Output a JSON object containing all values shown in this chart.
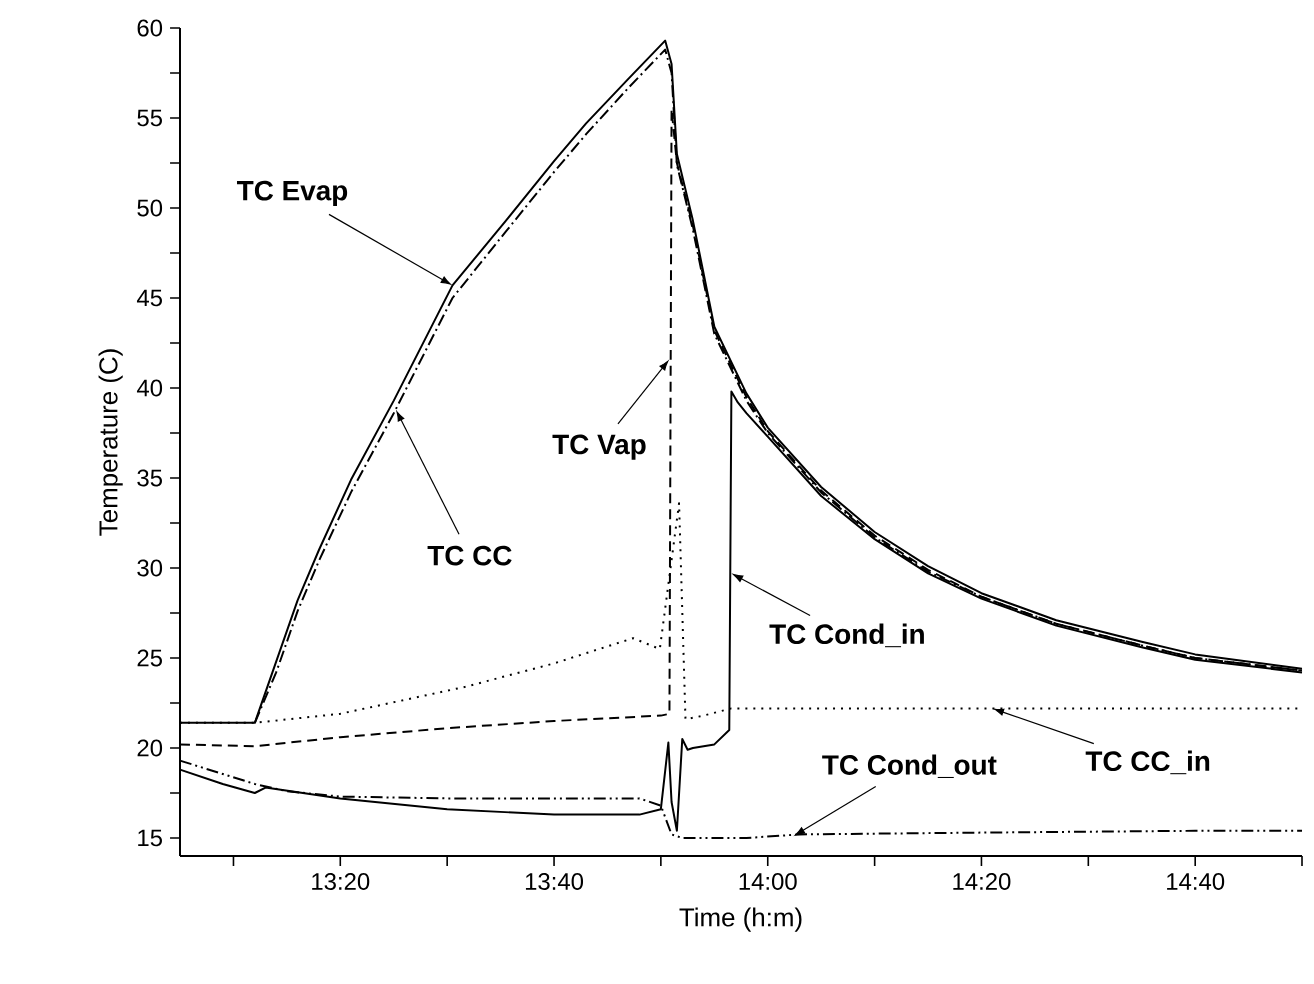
{
  "chart_data": {
    "type": "line",
    "xlabel": "Time (h:m)",
    "ylabel": "Temperature (C)",
    "xlim": [
      13.0833,
      14.8333
    ],
    "xticks": [
      {
        "value": 13.1667,
        "label": null
      },
      {
        "value": 13.3333,
        "label": "13:20"
      },
      {
        "value": 13.5,
        "label": null
      },
      {
        "value": 13.6667,
        "label": "13:40"
      },
      {
        "value": 13.8333,
        "label": null
      },
      {
        "value": 14.0,
        "label": "14:00"
      },
      {
        "value": 14.1667,
        "label": null
      },
      {
        "value": 14.3333,
        "label": "14:20"
      },
      {
        "value": 14.5,
        "label": null
      },
      {
        "value": 14.6667,
        "label": "14:40"
      },
      {
        "value": 14.8333,
        "label": null
      }
    ],
    "ylim": [
      14,
      60
    ],
    "yticks": [
      15,
      {
        "value": 17.5,
        "label": null
      },
      20,
      {
        "value": 22.5,
        "label": null
      },
      25,
      {
        "value": 27.5,
        "label": null
      },
      30,
      {
        "value": 32.5,
        "label": null
      },
      35,
      {
        "value": 37.5,
        "label": null
      },
      40,
      {
        "value": 42.5,
        "label": null
      },
      45,
      {
        "value": 47.5,
        "label": null
      },
      50,
      {
        "value": 52.5,
        "label": null
      },
      55,
      {
        "value": 57.5,
        "label": null
      },
      60
    ],
    "grid": false,
    "marker": "none",
    "series": [
      {
        "color": "#000000",
        "line_style": "solid",
        "x": [
          13.0833,
          13.2,
          13.2333,
          13.2667,
          13.3,
          13.35,
          13.4167,
          13.5083,
          13.5917,
          13.6667,
          13.7167,
          13.7833,
          13.84,
          13.85,
          13.8583,
          13.8833,
          13.9167,
          13.9667,
          14.0,
          14.0833,
          14.1667,
          14.25,
          14.3333,
          14.45,
          14.5833,
          14.6667,
          14.8333
        ],
        "values": [
          21.4,
          21.4,
          24.8,
          28.2,
          31.0,
          34.9,
          39.3,
          45.7,
          49.3,
          52.6,
          54.7,
          57.2,
          59.3,
          58.0,
          53,
          49.3,
          43.4,
          39.7,
          37.8,
          34.5,
          32.0,
          30.1,
          28.6,
          27.1,
          25.9,
          25.2,
          24.4
        ]
      },
      {
        "color": "#000000",
        "line_style": "dashdot",
        "x": [
          13.2,
          13.2333,
          13.2667,
          13.3,
          13.35,
          13.4167,
          13.5083,
          13.5917,
          13.6667,
          13.7167,
          13.7833,
          13.84,
          13.85,
          13.8583,
          13.8833,
          13.9167,
          13.9667,
          14.0,
          14.0833,
          14.1667,
          14.25,
          14.3333,
          14.45,
          14.5833,
          14.6667,
          14.8333
        ],
        "values": [
          21.4,
          24.2,
          27.6,
          30.4,
          34.2,
          38.6,
          45.0,
          48.7,
          52.0,
          54.1,
          56.7,
          58.8,
          57.5,
          52.4,
          48.8,
          43.0,
          39.3,
          37.5,
          34.2,
          31.7,
          29.8,
          28.4,
          26.9,
          25.7,
          25.0,
          24.3
        ]
      },
      {
        "color": "#000000",
        "line_style": "dashed",
        "x": [
          13.0833,
          13.2,
          13.3333,
          13.5,
          13.6667,
          13.8333,
          13.8467,
          13.85,
          13.8583,
          13.8833,
          13.9167,
          13.9667,
          14.0,
          14.0833,
          14.1667,
          14.25,
          14.3333,
          14.45,
          14.5833,
          14.6667,
          14.8333
        ],
        "values": [
          20.2,
          20.1,
          20.6,
          21.1,
          21.5,
          21.8,
          21.9,
          55.5,
          52.5,
          49.0,
          43.2,
          39.5,
          37.6,
          34.3,
          31.8,
          29.9,
          28.4,
          26.9,
          25.7,
          25.0,
          24.3
        ]
      },
      {
        "color": "#000000",
        "line_style": "solid",
        "x": [
          13.0833,
          13.15,
          13.2,
          13.2167,
          13.3333,
          13.5,
          13.6667,
          13.8,
          13.8333,
          13.845,
          13.85,
          13.8583,
          13.8667,
          13.875,
          13.8833,
          13.9167,
          13.94,
          13.9433,
          13.9533,
          13.9667,
          14.0,
          14.0833,
          14.1667,
          14.25,
          14.3333,
          14.45,
          14.5833,
          14.6667,
          14.8333
        ],
        "values": [
          18.8,
          18.0,
          17.5,
          17.8,
          17.2,
          16.6,
          16.3,
          16.3,
          16.6,
          20.3,
          17.0,
          15.4,
          20.5,
          19.9,
          20.0,
          20.2,
          21.0,
          39.8,
          39.2,
          38.6,
          37.3,
          34.0,
          31.6,
          29.7,
          28.3,
          26.8,
          25.6,
          24.9,
          24.2
        ]
      },
      {
        "color": "#000000",
        "line_style": "dotted",
        "x": [
          13.0833,
          13.2,
          13.3333,
          13.5283,
          13.6667,
          13.79,
          13.8317,
          13.8617,
          13.8717,
          13.9,
          13.9433,
          14.3333,
          14.8333
        ],
        "values": [
          21.4,
          21.4,
          21.9,
          23.4,
          24.7,
          26.1,
          25.5,
          33.6,
          21.6,
          21.8,
          22.2,
          22.2,
          22.2
        ]
      },
      {
        "color": "#000000",
        "line_style": "dashdotdot",
        "x": [
          13.0833,
          13.2,
          13.25,
          13.3333,
          13.5,
          13.6667,
          13.8,
          13.8333,
          13.85,
          13.8667,
          13.9667,
          14.05,
          14.3333,
          14.6667,
          14.8333
        ],
        "values": [
          19.3,
          18.0,
          17.6,
          17.3,
          17.2,
          17.2,
          17.2,
          16.8,
          15.2,
          15.0,
          15.0,
          15.2,
          15.3,
          15.4,
          15.4
        ]
      }
    ],
    "annotations": [
      {
        "text": "TC Evap",
        "x": 13.5083,
        "y": 45.7
      },
      {
        "text": "TC CC",
        "x": 13.42,
        "y": 38.8
      },
      {
        "text": "TC Vap",
        "x": 13.8467,
        "y": 41.6
      },
      {
        "text": "TC Cond_in",
        "x": 13.9433,
        "y": 29.7
      },
      {
        "text": "TC CC_in",
        "x": 14.35,
        "y": 22.2
      },
      {
        "text": "TC Cond_out",
        "x": 14.04,
        "y": 15.1
      }
    ]
  }
}
